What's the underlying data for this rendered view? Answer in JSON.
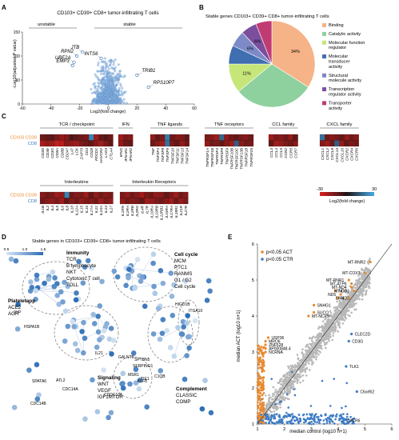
{
  "panel_labels": [
    "A",
    "B",
    "C",
    "D",
    "E"
  ],
  "panelA": {
    "title": "CD103+ CD39+ CD8+ tumor-infiltrating T cells",
    "left_label": "unstable",
    "right_label": "stable",
    "ylabel": "-Log10(adjusted P value)",
    "xlabel": "Log2(fold change)"
  },
  "panelB": {
    "title": "Stable genes CD103+ CD39+ CD8+ tumor-infiltrating T cells"
  },
  "panelC": {
    "row_labels": [
      "CD103 CD39",
      "CD8"
    ],
    "legend_label": "Log2(fold change)",
    "legend_min": "-30",
    "legend_max": "30"
  },
  "panelD": {
    "title": "Stable genes in CD103+ CD39+ CD8+ tumor-infiltrating T cells",
    "legend_ticks": [
      "0.5",
      "1.0",
      "1.5"
    ],
    "groups": [
      {
        "title": "Immunity",
        "items": [
          "TCR",
          "B lymphocyte",
          "NKT",
          "Cytotoxic T cell",
          "TOLL"
        ]
      },
      {
        "title": "Cell cycle",
        "items": [
          "MCM",
          "PTC1",
          "RANMS",
          "G1 / G2",
          "Cell cycle"
        ]
      },
      {
        "title": "Plateletapp",
        "items": [
          "ACE2",
          "AGR"
        ]
      },
      {
        "title": "Signaling",
        "items": [
          "WNT",
          "VEGF",
          "IGF1MTOR"
        ]
      },
      {
        "title": "Complement",
        "items": [
          "CLASSIC",
          "COMP"
        ]
      }
    ],
    "nodes": [
      "JUP",
      "HSPA1B",
      "SPATA6",
      "ATL2",
      "CDC14A",
      "CDC14B",
      "IL21",
      "GALNT9",
      "CDDC134",
      "SPTBN5",
      "SERPING1",
      "MSR1",
      "KLF8",
      "TIE1",
      "HIGD1B",
      "ITGA10",
      "C1QB"
    ]
  },
  "chart_data": [
    {
      "panel": "A",
      "type": "scatter",
      "title": "CD103+ CD39+ CD8+ tumor-infiltrating T cells",
      "xlabel": "Log2(fold change)",
      "ylabel": "-Log10(adjusted P value)",
      "xlim": [
        -60,
        60
      ],
      "ylim": [
        0,
        150
      ],
      "xticks": [
        -60,
        -40,
        -20,
        0,
        20,
        40,
        60
      ],
      "yticks": [
        0,
        50,
        100,
        150
      ],
      "labeled_points": [
        {
          "label": "JTB",
          "x": -18,
          "y": 108
        },
        {
          "label": "RPN2",
          "x": -22,
          "y": 100
        },
        {
          "label": "INTS6",
          "x": -5,
          "y": 95
        },
        {
          "label": "UBE2A",
          "x": -24,
          "y": 87
        },
        {
          "label": "EMP3",
          "x": -25,
          "y": 80
        },
        {
          "label": "TRIB1",
          "x": 20,
          "y": 60
        },
        {
          "label": "RPS10P7",
          "x": 28,
          "y": 35
        }
      ]
    },
    {
      "panel": "B",
      "type": "pie",
      "title": "Stable genes CD103+ CD39+ CD8+ tumor-infiltrating T cells",
      "slices": [
        {
          "name": "Binding",
          "value": 34,
          "label": "34%",
          "color": "#f6b388"
        },
        {
          "name": "Catalytic activity",
          "value": 30,
          "label": "",
          "color": "#8fd19e"
        },
        {
          "name": "Molecular function regulator",
          "value": 11,
          "label": "11%",
          "color": "#c6e67a"
        },
        {
          "name": "Molecular transducer activity",
          "value": 7,
          "label": "",
          "color": "#3f6fb0"
        },
        {
          "name": "Structural molecule activity",
          "value": 6,
          "label": "6%",
          "color": "#7d8ac7"
        },
        {
          "name": "Transcription regulator activity",
          "value": 6,
          "label": "6%",
          "color": "#7b4f9e"
        },
        {
          "name": "Transporter activity",
          "value": 6,
          "label": "",
          "color": "#c13b73"
        }
      ]
    },
    {
      "panel": "C",
      "type": "heatmap",
      "rows": [
        "CD103 CD39",
        "CD8"
      ],
      "blocks": [
        {
          "name": "TCR / checkpoint",
          "genes": [
            "CD3D",
            "CD3E",
            "CD3G",
            "CD8A",
            "CD8B",
            "CD247",
            "LAT",
            "LCK",
            "ZAP70",
            "CD4",
            "CD28",
            "PDCD1",
            "HAVCR2",
            "LAG3",
            "CTLA4"
          ],
          "values": [
            [
              -12,
              -10,
              -8,
              -14,
              -18,
              -16,
              -6,
              -10,
              -12,
              -14,
              22,
              -20,
              -10,
              -8,
              -12
            ],
            [
              -22,
              -18,
              -20,
              -26,
              -24,
              -16,
              -18,
              -20,
              -14,
              -12,
              -10,
              -16,
              -20,
              -14,
              -10
            ]
          ]
        },
        {
          "name": "IFN",
          "genes": [
            "IFNG",
            "IFNAR1",
            "IFNAR2"
          ],
          "values": [
            [
              -20,
              -14,
              -16
            ],
            [
              -18,
              -12,
              -10
            ]
          ]
        },
        {
          "name": "TNF ligands",
          "genes": [
            "TNF",
            "TNFSF4",
            "TNFSF8",
            "TNFSF9",
            "TNFSF10",
            "TNFSF11",
            "TNFSF13",
            "TNFSF14"
          ],
          "values": [
            [
              -18,
              -10,
              -14,
              20,
              -12,
              -16,
              -14,
              -10
            ],
            [
              -12,
              -16,
              -20,
              18,
              -14,
              -10,
              -18,
              -12
            ]
          ]
        },
        {
          "name": "TNF receptors",
          "genes": [
            "TNFRSF1A",
            "TNFRSF1B",
            "TNFRSF4",
            "TNFRSF8",
            "TNFRSF9",
            "TNFRSF10B",
            "TNFRSF10C",
            "TNFRSF13B",
            "TNFRSF18",
            "TNFRSF25"
          ],
          "values": [
            [
              -14,
              -16,
              -20,
              16,
              -18,
              -12,
              -10,
              -14,
              -16,
              -12
            ],
            [
              -18,
              -12,
              -14,
              -10,
              -16,
              -20,
              14,
              -16,
              -12,
              -14
            ]
          ]
        },
        {
          "name": "CCL family",
          "genes": [
            "CCL3",
            "CCL4",
            "CCL5",
            "CCR2",
            "CCR5",
            "CCR7"
          ],
          "values": [
            [
              -20,
              -14,
              -16,
              -12,
              -18,
              -10
            ],
            [
              -10,
              -20,
              -18,
              -14,
              -12,
              -16
            ]
          ]
        },
        {
          "name": "CXCL family",
          "genes": [
            "CXCL1",
            "CXCL2",
            "CXCL8",
            "CXCL13",
            "CXCL16",
            "CXCR2",
            "CXCR4",
            "CXCR6"
          ],
          "values": [
            [
              18,
              -12,
              -16,
              -14,
              -10,
              -18,
              -12,
              -16
            ],
            [
              -16,
              -20,
              -12,
              14,
              -18,
              -10,
              -14,
              -12
            ]
          ]
        },
        {
          "name": "Interleukins",
          "genes": [
            "IL1B",
            "IL2",
            "IL3",
            "IL5",
            "IL6",
            "IL8",
            "IL10",
            "IL12A",
            "IL15",
            "IL16",
            "IL17A",
            "IL21",
            "IL23A",
            "IL24",
            "IL27"
          ],
          "values": [
            [
              -16,
              -12,
              -14,
              -20,
              -18,
              22,
              -12,
              -16,
              -14,
              -20,
              -10,
              -18,
              -12,
              -16,
              -14
            ],
            [
              -12,
              -16,
              -18,
              -14,
              -20,
              -10,
              -16,
              -12,
              -18,
              -14,
              -16,
              -12,
              -20,
              -14,
              -18
            ]
          ]
        },
        {
          "name": "Interleukin Receptors",
          "genes": [
            "IL1RN",
            "IL2RA",
            "IL2RB",
            "IL2RG",
            "IL4R",
            "IL7R",
            "IL10RA",
            "IL10RB",
            "IL12RB1",
            "IL15RA",
            "IL17RA",
            "IL18R1",
            "IL21R",
            "IL27R"
          ],
          "values": [
            [
              -14,
              -18,
              -12,
              -16,
              -20,
              -14,
              -12,
              -18,
              -16,
              -10,
              -14,
              -20,
              -12,
              -16
            ],
            [
              -18,
              -12,
              -16,
              -14,
              -10,
              -20,
              -18,
              -14,
              -12,
              -16,
              -20,
              -12,
              -18,
              -14
            ]
          ]
        }
      ]
    },
    {
      "panel": "E",
      "type": "scatter",
      "xlabel": "median control (log10 n+1)",
      "ylabel": "median ACT (log10 n+1)",
      "xlim": [
        1,
        6
      ],
      "ylim": [
        1,
        6
      ],
      "xticks": [
        1,
        2,
        3,
        4,
        5,
        6
      ],
      "yticks": [
        1,
        2,
        3,
        4,
        5,
        6
      ],
      "legend": [
        "p<0.05 ACT",
        "p<0.05 CTR"
      ],
      "colors": {
        "act": "#e8892f",
        "ctr": "#3d7cc4",
        "ns": "#b8b8b8"
      },
      "labeled_points": [
        {
          "label": "MT-RNR2",
          "x": 5.2,
          "y": 5.5,
          "group": "act"
        },
        {
          "label": "MT-COX1",
          "x": 5.0,
          "y": 5.2,
          "group": "act"
        },
        {
          "label": "MT-RNR1",
          "x": 4.4,
          "y": 5.0,
          "group": "act"
        },
        {
          "label": "MT-ATP6",
          "x": 4.5,
          "y": 4.9,
          "group": "act"
        },
        {
          "label": "MT-ND4",
          "x": 4.5,
          "y": 4.8,
          "group": "act"
        },
        {
          "label": "ND2",
          "x": 3.9,
          "y": 4.7,
          "group": "act"
        },
        {
          "label": "MT-CO3",
          "x": 4.6,
          "y": 4.7,
          "group": "act"
        },
        {
          "label": "ND5",
          "x": 4.1,
          "y": 4.6,
          "group": "act"
        },
        {
          "label": "ND1",
          "x": 4.0,
          "y": 4.5,
          "group": "act"
        },
        {
          "label": "EIF4",
          "x": 4.4,
          "y": 4.5,
          "group": "act"
        },
        {
          "label": "SNHG1",
          "x": 3.1,
          "y": 4.3,
          "group": "act"
        },
        {
          "label": "SUCO",
          "x": 3.1,
          "y": 4.1,
          "group": "act"
        },
        {
          "label": "MT-NCP9",
          "x": 2.9,
          "y": 4.0,
          "group": "act"
        },
        {
          "label": "USP36",
          "x": 1.4,
          "y": 3.4,
          "group": "act"
        },
        {
          "label": "MRO6",
          "x": 1.3,
          "y": 3.3,
          "group": "act"
        },
        {
          "label": "ZNF528",
          "x": 1.3,
          "y": 3.2,
          "group": "act"
        },
        {
          "label": "AP000848.4",
          "x": 1.3,
          "y": 3.1,
          "group": "act"
        },
        {
          "label": "NCRNA",
          "x": 1.3,
          "y": 3.0,
          "group": "act"
        },
        {
          "label": "CLEC2D",
          "x": 4.5,
          "y": 3.5,
          "group": "ctr"
        },
        {
          "label": "CD3G",
          "x": 4.4,
          "y": 3.3,
          "group": "ctr"
        },
        {
          "label": "TLK1",
          "x": 4.3,
          "y": 2.6,
          "group": "ctr"
        },
        {
          "label": "C6orf62",
          "x": 4.7,
          "y": 1.9,
          "group": "ctr"
        },
        {
          "label": "CXCR6",
          "x": 4.2,
          "y": 1.1,
          "group": "ctr"
        }
      ]
    }
  ]
}
